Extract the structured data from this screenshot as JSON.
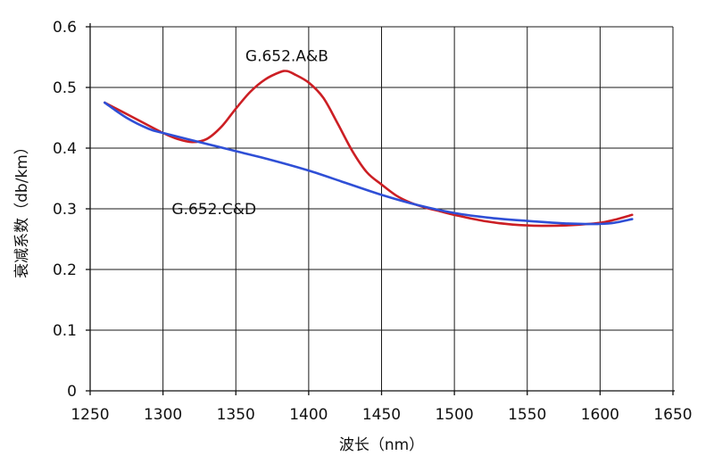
{
  "chart_data": {
    "type": "line",
    "title": "",
    "xlabel": "波长（nm）",
    "ylabel": "衰减系数（db/km）",
    "xlim": [
      1250,
      1650
    ],
    "ylim": [
      0,
      0.6
    ],
    "x_ticks": [
      1250,
      1300,
      1350,
      1400,
      1450,
      1500,
      1550,
      1600,
      1650
    ],
    "x_tick_labels": [
      "1250",
      "1300",
      "1350",
      "1400",
      "1450",
      "1500",
      "1550",
      "1600",
      "1650"
    ],
    "y_ticks": [
      0,
      0.1,
      0.2,
      0.3,
      0.4,
      0.5,
      0.6
    ],
    "y_tick_labels": [
      "0",
      "0.1",
      "0.2",
      "0.3",
      "0.4",
      "0.5",
      "0.6"
    ],
    "grid": true,
    "series": [
      {
        "name": "G.652.A&B",
        "color": "#cc1f24",
        "x": [
          1260,
          1280,
          1300,
          1310,
          1320,
          1330,
          1340,
          1350,
          1360,
          1370,
          1380,
          1385,
          1390,
          1400,
          1410,
          1420,
          1430,
          1440,
          1450,
          1460,
          1470,
          1480,
          1490,
          1500,
          1520,
          1540,
          1560,
          1580,
          1600,
          1610,
          1622
        ],
        "values": [
          0.475,
          0.45,
          0.425,
          0.415,
          0.41,
          0.415,
          0.435,
          0.465,
          0.493,
          0.513,
          0.525,
          0.527,
          0.522,
          0.508,
          0.483,
          0.44,
          0.395,
          0.36,
          0.34,
          0.322,
          0.31,
          0.302,
          0.296,
          0.29,
          0.28,
          0.274,
          0.272,
          0.273,
          0.277,
          0.282,
          0.29
        ]
      },
      {
        "name": "G.652.C&D",
        "color": "#2f4fd6",
        "x": [
          1260,
          1275,
          1290,
          1300,
          1325,
          1350,
          1375,
          1400,
          1425,
          1450,
          1475,
          1500,
          1525,
          1550,
          1575,
          1590,
          1600,
          1610,
          1622
        ],
        "values": [
          0.475,
          0.45,
          0.432,
          0.425,
          0.41,
          0.395,
          0.38,
          0.363,
          0.343,
          0.323,
          0.306,
          0.293,
          0.285,
          0.28,
          0.276,
          0.275,
          0.275,
          0.277,
          0.283
        ]
      }
    ],
    "annotations": [
      {
        "text": "G.652.A&B",
        "x": 1385,
        "y": 0.552
      },
      {
        "text": "G.652.C&D",
        "x": 1335,
        "y": 0.3
      }
    ]
  }
}
